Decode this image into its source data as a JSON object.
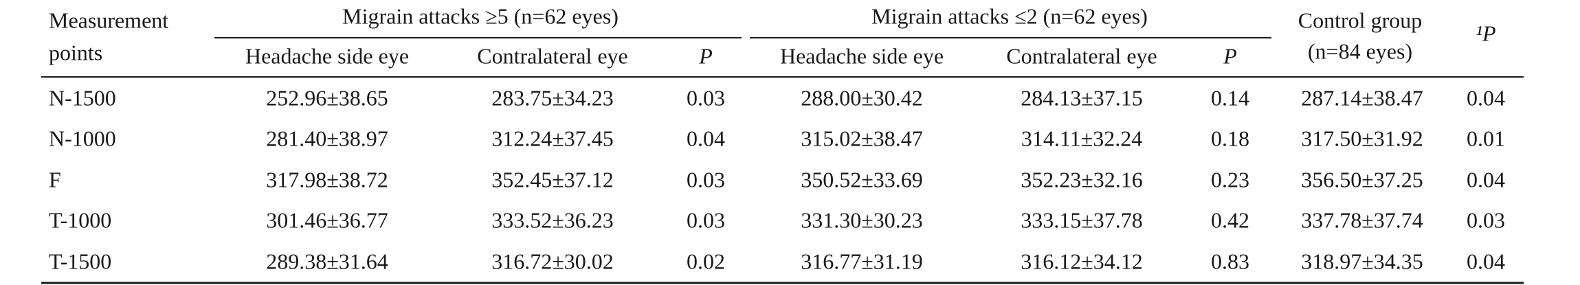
{
  "table": {
    "stub_header": [
      "Measurement",
      "points"
    ],
    "groups": [
      "Migrain attacks ≥5 (n=62 eyes)",
      "Migrain attacks ≤2 (n=62 eyes)"
    ],
    "control_header": [
      "Control group",
      "(n=84 eyes)"
    ],
    "p_header": "¹P",
    "subheaders": [
      "Headache side eye",
      "Contralateral eye",
      "P",
      "Headache side eye",
      "Contralateral eye",
      "P"
    ],
    "rows": [
      [
        "N-1500",
        "252.96±38.65",
        "283.75±34.23",
        "0.03",
        "288.00±30.42",
        "284.13±37.15",
        "0.14",
        "287.14±38.47",
        "0.04"
      ],
      [
        "N-1000",
        "281.40±38.97",
        "312.24±37.45",
        "0.04",
        "315.02±38.47",
        "314.11±32.24",
        "0.18",
        "317.50±31.92",
        "0.01"
      ],
      [
        "F",
        "317.98±38.72",
        "352.45±37.12",
        "0.03",
        "350.52±33.69",
        "352.23±32.16",
        "0.23",
        "356.50±37.25",
        "0.04"
      ],
      [
        "T-1000",
        "301.46±36.77",
        "333.52±36.23",
        "0.03",
        "331.30±30.23",
        "333.15±37.78",
        "0.42",
        "337.78±37.74",
        "0.03"
      ],
      [
        "T-1500",
        "289.38±31.64",
        "316.72±30.02",
        "0.02",
        "316.77±31.19",
        "316.12±34.12",
        "0.83",
        "318.97±34.35",
        "0.04"
      ]
    ]
  }
}
